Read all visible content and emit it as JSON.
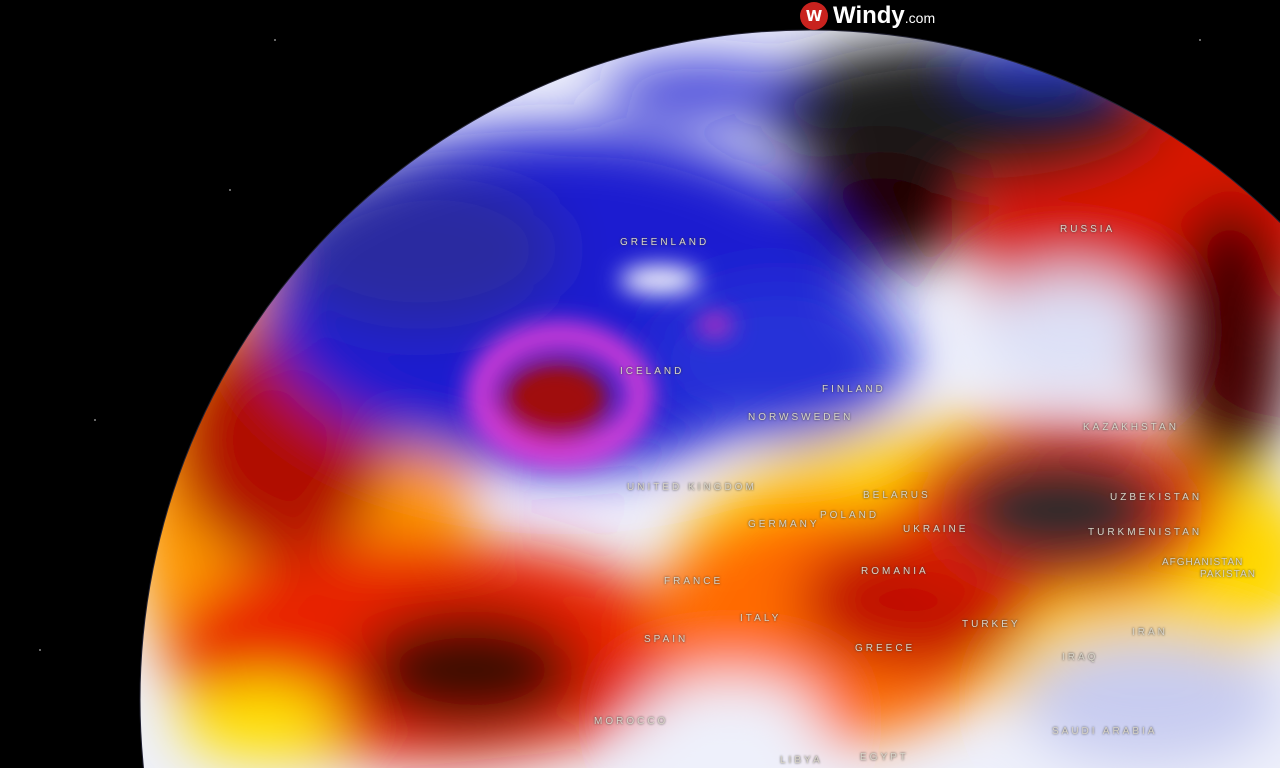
{
  "brand": {
    "name": "Windy",
    "suffix": ".com",
    "accent": "#c8221e"
  },
  "labels": {
    "greenland": "GREENLAND",
    "iceland": "ICELAND",
    "russia": "RUSSIA",
    "finland": "FINLAND",
    "norway_sweden": "NORWSWEDEN",
    "united_kingdom": "UNITED KINGDOM",
    "belarus": "BELARUS",
    "poland": "POLAND",
    "germany": "GERMANY",
    "ukraine": "UKRAINE",
    "kazakhstan": "KAZAKHSTAN",
    "uzbekistan": "UZBEKISTAN",
    "turkmenistan": "TURKMENISTAN",
    "afghanistan": "AFGHANISTAN",
    "pakistan": "PAKISTAN",
    "france": "FRANCE",
    "romania": "ROMANIA",
    "italy": "ITALY",
    "spain": "SPAIN",
    "greece": "GREECE",
    "turkey": "TURKEY",
    "iran": "IRAN",
    "iraq": "IRAQ",
    "morocco": "MOROCCO",
    "saudi_arabia": "SAUDI ARABIA",
    "egypt": "EGYPT",
    "libya": "LIBYA"
  },
  "colors": {
    "cold": "#1a1fd0",
    "very_cold": "#e03cd8",
    "neutral": "#eef0fb",
    "warm": "#ffd800",
    "hot": "#e82000",
    "extreme": "#2a2a2a"
  }
}
